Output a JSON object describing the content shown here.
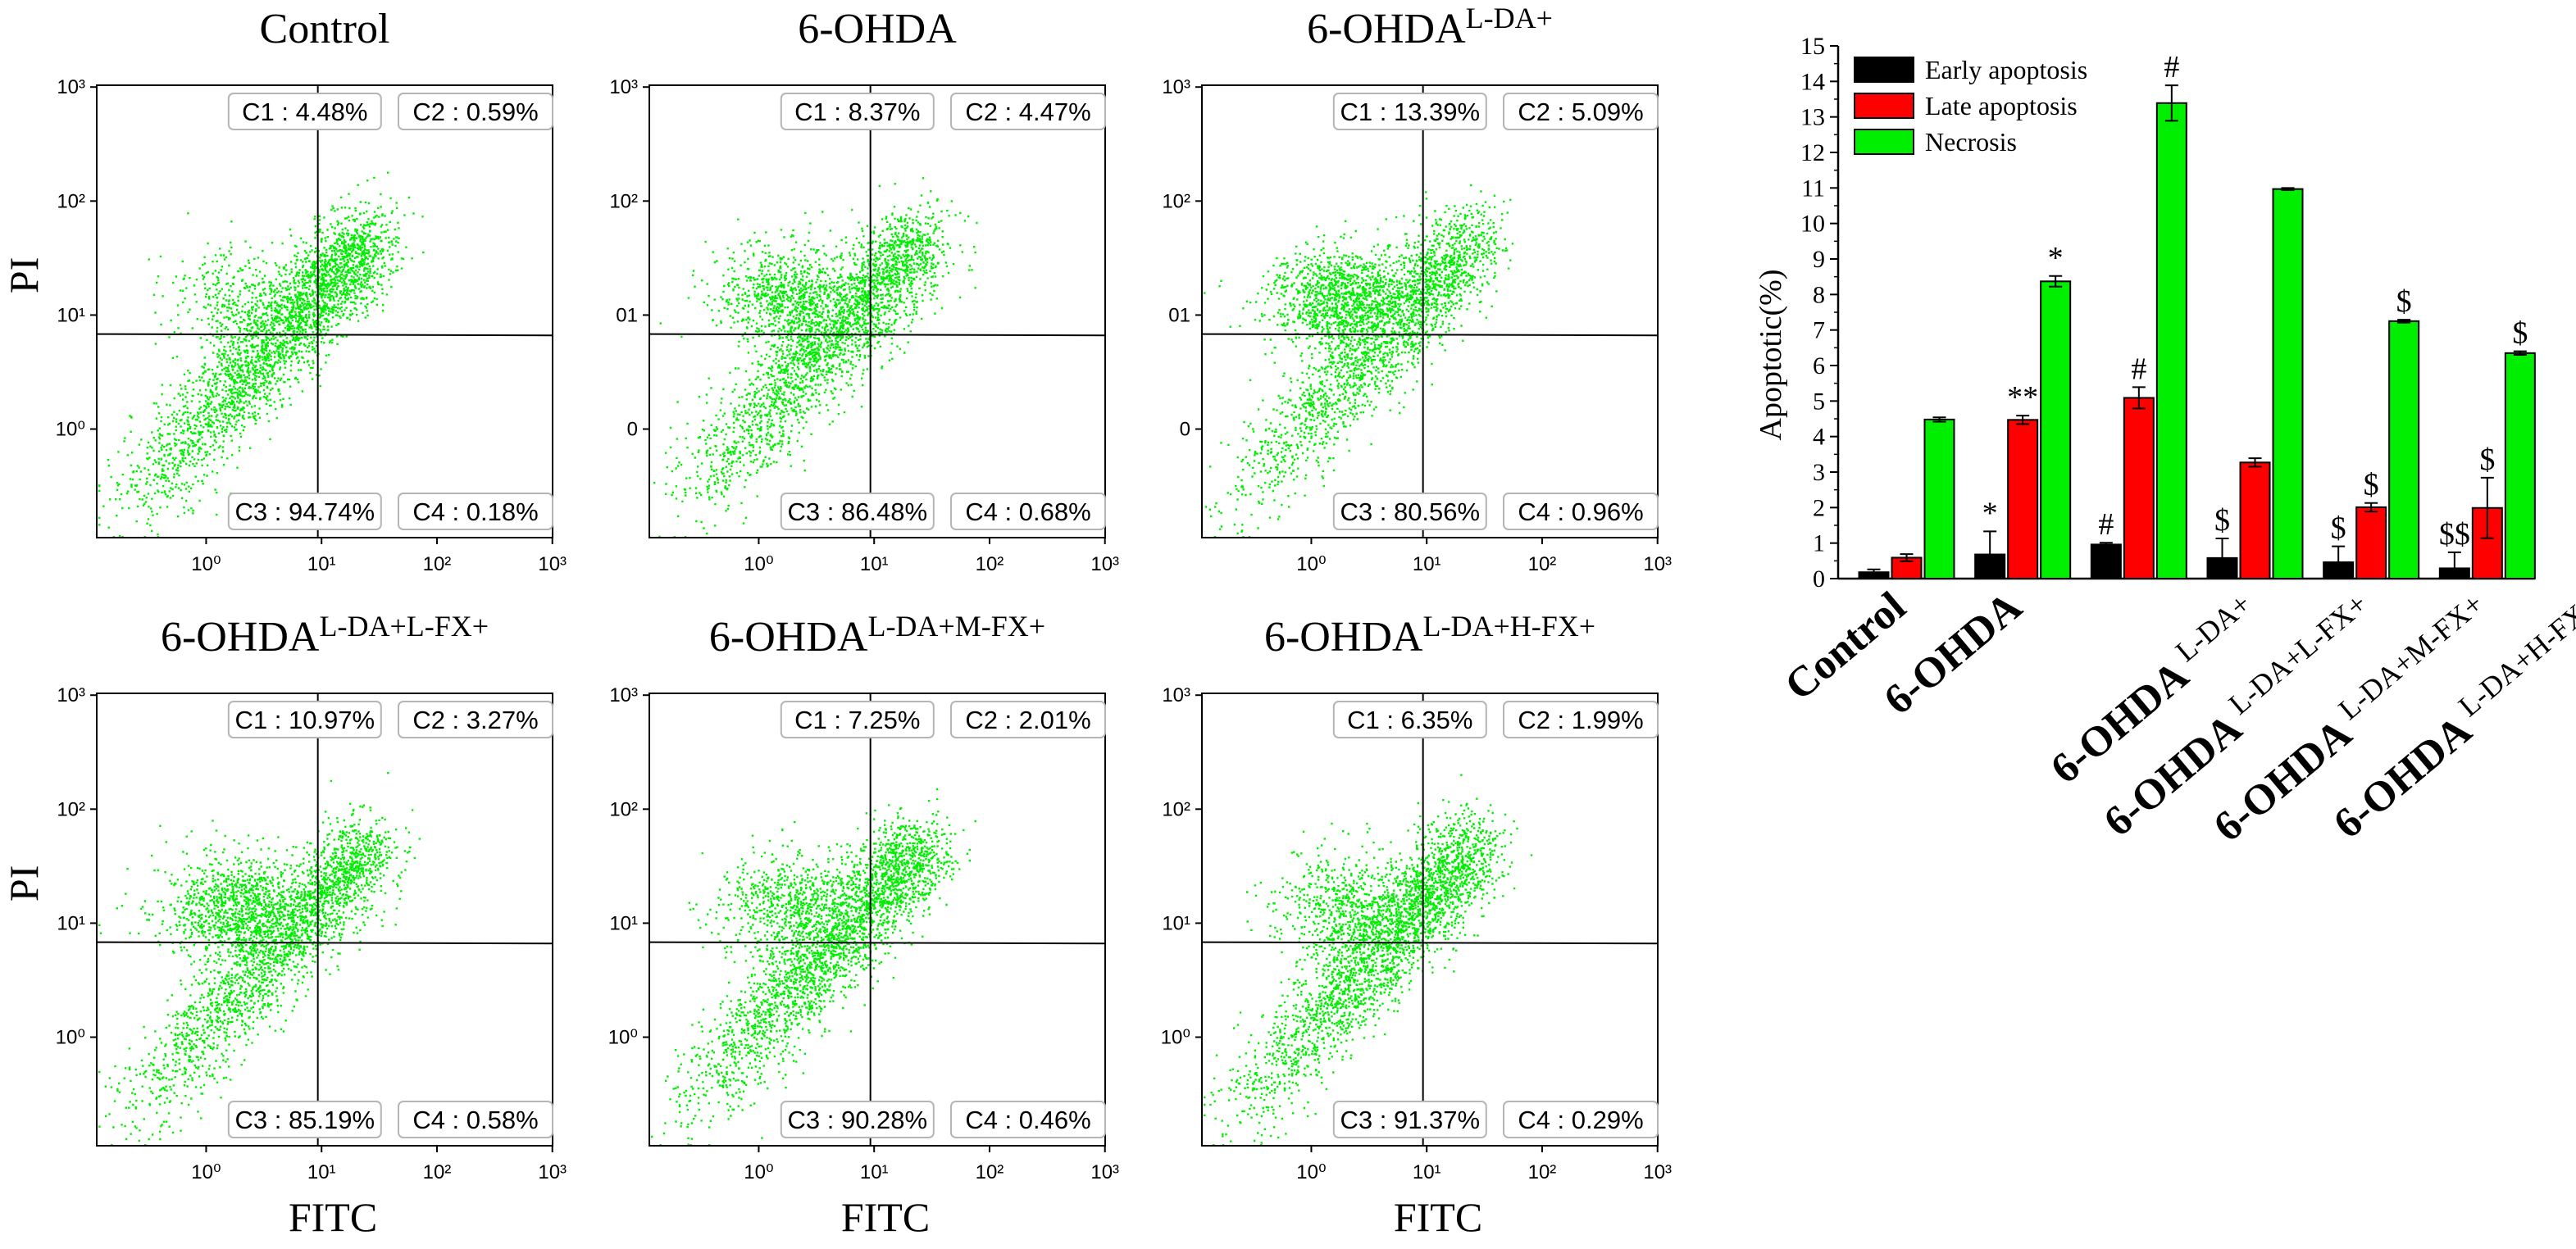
{
  "chart_data": [
    {
      "type": "scatter",
      "title": "Control",
      "xlabel": "",
      "ylabel": "PI",
      "x_ticks": [
        "10⁰",
        "10¹",
        "10²",
        "10³"
      ],
      "y_ticks": [
        "10⁰",
        "10¹",
        "10²",
        "10³"
      ],
      "quadrants": {
        "C1": "C1 : 4.48%",
        "C2": "C2 : 0.59%",
        "C3": "C3 : 94.74%",
        "C4": "C4 : 0.18%"
      },
      "point_color": "#00ee00"
    },
    {
      "type": "scatter",
      "title": "6-OHDA",
      "xlabel": "",
      "ylabel": "",
      "x_ticks": [
        "10⁰",
        "10¹",
        "10²",
        "10³"
      ],
      "y_ticks": [
        "0",
        "01",
        "10²",
        "10³"
      ],
      "quadrants": {
        "C1": "C1 : 8.37%",
        "C2": "C2 : 4.47%",
        "C3": "C3 : 86.48%",
        "C4": "C4 : 0.68%"
      },
      "point_color": "#00ee00"
    },
    {
      "type": "scatter",
      "title": "6-OHDA",
      "title_sup": "L-DA+",
      "xlabel": "",
      "ylabel": "",
      "x_ticks": [
        "10⁰",
        "10¹",
        "10²",
        "10³"
      ],
      "y_ticks": [
        "0",
        "01",
        "10²",
        "10³"
      ],
      "quadrants": {
        "C1": "C1 : 13.39%",
        "C2": "C2 : 5.09%",
        "C3": "C3 : 80.56%",
        "C4": "C4 : 0.96%"
      },
      "point_color": "#00ee00"
    },
    {
      "type": "scatter",
      "title": "6-OHDA",
      "title_sup": "L-DA+L-FX+",
      "xlabel": "FITC",
      "ylabel": "PI",
      "x_ticks": [
        "10⁰",
        "10¹",
        "10²",
        "10³"
      ],
      "y_ticks": [
        "10⁰",
        "10¹",
        "10²",
        "10³"
      ],
      "quadrants": {
        "C1": "C1 : 10.97%",
        "C2": "C2 : 3.27%",
        "C3": "C3 : 85.19%",
        "C4": "C4 : 0.58%"
      },
      "point_color": "#00ee00"
    },
    {
      "type": "scatter",
      "title": "6-OHDA",
      "title_sup": "L-DA+M-FX+",
      "xlabel": "FITC",
      "ylabel": "",
      "x_ticks": [
        "10⁰",
        "10¹",
        "10²",
        "10³"
      ],
      "y_ticks": [
        "10⁰",
        "10¹",
        "10²",
        "10³"
      ],
      "quadrants": {
        "C1": "C1 : 7.25%",
        "C2": "C2 : 2.01%",
        "C3": "C3 : 90.28%",
        "C4": "C4 : 0.46%"
      },
      "point_color": "#00ee00"
    },
    {
      "type": "scatter",
      "title": "6-OHDA",
      "title_sup": "L-DA+H-FX+",
      "xlabel": "FITC",
      "ylabel": "",
      "x_ticks": [
        "10⁰",
        "10¹",
        "10²",
        "10³"
      ],
      "y_ticks": [
        "10⁰",
        "10¹",
        "10²",
        "10³"
      ],
      "quadrants": {
        "C1": "C1 : 6.35%",
        "C2": "C2 : 1.99%",
        "C3": "C3 : 91.37%",
        "C4": "C4 : 0.29%"
      },
      "point_color": "#00ee00"
    },
    {
      "type": "bar",
      "title": "",
      "xlabel": "",
      "ylabel": "Apoptotic(%)",
      "ylim": [
        0,
        15
      ],
      "yticks": [
        "0",
        "1",
        "2",
        "3",
        "4",
        "5",
        "6",
        "7",
        "8",
        "9",
        "10",
        "11",
        "12",
        "13",
        "14",
        "15"
      ],
      "legend_position": "top-left",
      "categories": [
        {
          "main": "Control",
          "sup": ""
        },
        {
          "main": "6-OHDA",
          "sup": ""
        },
        {
          "main": "6-OHDA",
          "sup": "L-DA+"
        },
        {
          "main": "6-OHDA",
          "sup": "L-DA+L-FX+"
        },
        {
          "main": "6-OHDA",
          "sup": "L-DA+M-FX+"
        },
        {
          "main": "6-OHDA",
          "sup": "L-DA+H-FX+"
        }
      ],
      "series": [
        {
          "name": "Early apoptosis",
          "color": "#000000",
          "values": [
            0.18,
            0.68,
            0.96,
            0.58,
            0.46,
            0.29
          ],
          "errors": [
            0.08,
            0.65,
            0.05,
            0.55,
            0.45,
            0.45
          ],
          "annotations": [
            "",
            "*",
            "#",
            "$",
            "$",
            "$$"
          ]
        },
        {
          "name": "Late apoptosis",
          "color": "#ff0000",
          "values": [
            0.59,
            4.47,
            5.09,
            3.27,
            2.01,
            1.99
          ],
          "errors": [
            0.1,
            0.12,
            0.3,
            0.12,
            0.12,
            0.85
          ],
          "annotations": [
            "",
            "**",
            "#",
            "",
            "$",
            "$"
          ]
        },
        {
          "name": "Necrosis",
          "color": "#00ee00",
          "values": [
            4.48,
            8.37,
            13.39,
            10.97,
            7.25,
            6.35
          ],
          "errors": [
            0.06,
            0.15,
            0.5,
            0.03,
            0.04,
            0.05
          ],
          "annotations": [
            "",
            "*",
            "#",
            "",
            "$",
            "$"
          ]
        }
      ]
    }
  ]
}
